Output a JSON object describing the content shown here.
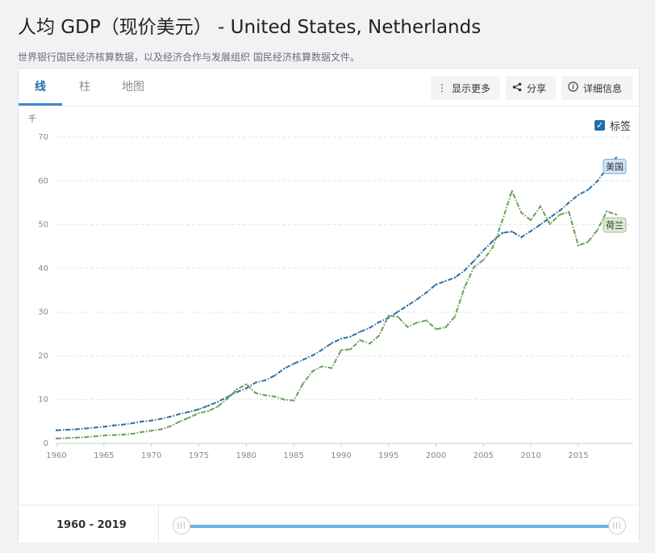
{
  "header": {
    "title": "人均 GDP（现价美元） - United States, Netherlands",
    "subtitle": "世界银行国民经济核算数据，以及经济合作与发展组织 国民经济核算数据文件。"
  },
  "tabs": [
    {
      "label": "线",
      "active": true
    },
    {
      "label": "柱",
      "active": false
    },
    {
      "label": "地图",
      "active": false
    }
  ],
  "toolbar": {
    "more_label": "显示更多",
    "share_label": "分享",
    "info_label": "详细信息",
    "labels_toggle": "标签",
    "labels_checked": true
  },
  "footer": {
    "range_label": "1960 - 2019",
    "range_start": 1960,
    "range_end": 2019
  },
  "chart_data": {
    "type": "line",
    "ylabel": "千",
    "ylim": [
      0,
      70
    ],
    "yticks": [
      0,
      10,
      20,
      30,
      40,
      50,
      60,
      70
    ],
    "xlim": [
      1960,
      2019
    ],
    "xticks": [
      1960,
      1965,
      1970,
      1975,
      1980,
      1985,
      1990,
      1995,
      2000,
      2005,
      2010,
      2015
    ],
    "grid": true,
    "x": [
      1960,
      1961,
      1962,
      1963,
      1964,
      1965,
      1966,
      1967,
      1968,
      1969,
      1970,
      1971,
      1972,
      1973,
      1974,
      1975,
      1976,
      1977,
      1978,
      1979,
      1980,
      1981,
      1982,
      1983,
      1984,
      1985,
      1986,
      1987,
      1988,
      1989,
      1990,
      1991,
      1992,
      1993,
      1994,
      1995,
      1996,
      1997,
      1998,
      1999,
      2000,
      2001,
      2002,
      2003,
      2004,
      2005,
      2006,
      2007,
      2008,
      2009,
      2010,
      2011,
      2012,
      2013,
      2014,
      2015,
      2016,
      2017,
      2018,
      2019
    ],
    "series": [
      {
        "name": "美国",
        "color": "#2f6fa3",
        "label_bg": "#cfe3f5",
        "label_border": "#7fb0dc",
        "values": [
          3.0,
          3.1,
          3.2,
          3.4,
          3.6,
          3.8,
          4.1,
          4.3,
          4.6,
          5.0,
          5.2,
          5.6,
          6.1,
          6.7,
          7.2,
          7.8,
          8.6,
          9.5,
          10.6,
          11.7,
          12.6,
          13.9,
          14.4,
          15.5,
          17.1,
          18.2,
          19.1,
          20.1,
          21.4,
          22.9,
          23.9,
          24.4,
          25.5,
          26.4,
          27.7,
          28.7,
          30.1,
          31.5,
          32.9,
          34.5,
          36.3,
          37.1,
          37.9,
          39.5,
          41.7,
          44.1,
          46.3,
          48.1,
          48.4,
          47.1,
          48.5,
          50.0,
          51.6,
          53.1,
          55.0,
          56.8,
          57.9,
          59.9,
          62.8,
          65.3
        ]
      },
      {
        "name": "荷兰",
        "color": "#6a9e5a",
        "label_bg": "#d9ebcf",
        "label_border": "#9cc58a",
        "values": [
          1.1,
          1.2,
          1.3,
          1.4,
          1.6,
          1.8,
          1.9,
          2.0,
          2.2,
          2.6,
          2.9,
          3.2,
          3.9,
          5.0,
          5.9,
          6.9,
          7.4,
          8.4,
          10.2,
          12.3,
          13.5,
          11.5,
          11.0,
          10.7,
          10.0,
          9.8,
          13.7,
          16.5,
          17.6,
          17.2,
          21.3,
          21.5,
          23.6,
          22.8,
          24.6,
          29.2,
          28.9,
          26.6,
          27.6,
          28.1,
          26.1,
          26.5,
          29.0,
          35.6,
          40.3,
          41.9,
          44.9,
          50.9,
          57.7,
          52.7,
          51.0,
          54.2,
          50.1,
          52.2,
          52.9,
          45.2,
          46.0,
          48.7,
          53.0,
          52.3
        ]
      }
    ]
  }
}
